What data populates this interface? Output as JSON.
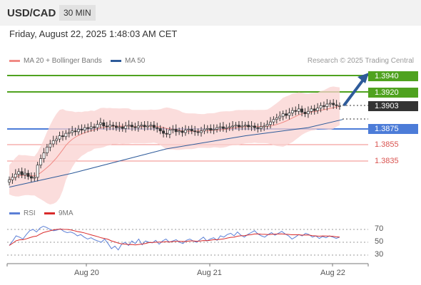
{
  "header": {
    "symbol": "USD/CAD",
    "timeframe": "30 MIN"
  },
  "datetime": "Friday, August 22, 2025 1:48:03 AM CET",
  "legend": [
    {
      "label": "MA 20 + Bollinger Bands",
      "color": "#f08a85"
    },
    {
      "label": "MA 50",
      "color": "#2e5b9a"
    }
  ],
  "credit": "Research © 2025 Trading Central",
  "levels": [
    {
      "value": "1.3940",
      "style": "green"
    },
    {
      "value": "1.3920",
      "style": "green"
    },
    {
      "value": "1.3903",
      "style": "dark"
    },
    {
      "value": "1.3875",
      "style": "blue"
    },
    {
      "value": "1.3855",
      "style": "red"
    },
    {
      "value": "1.3835",
      "style": "red"
    }
  ],
  "rsi_legend": [
    {
      "label": "RSI",
      "color": "#5b7fd6"
    },
    {
      "label": "9MA",
      "color": "#d92b2b"
    }
  ],
  "rsi_ticks": [
    "70",
    "50",
    "30"
  ],
  "x_ticks": [
    "Aug 20",
    "Aug 21",
    "Aug 22"
  ],
  "chart_data": {
    "type": "candlestick",
    "instrument": "USD/CAD",
    "ylim": [
      1.38,
      1.3946
    ],
    "current_price": 1.3903,
    "resistance_levels": [
      1.394,
      1.392
    ],
    "pivot": 1.3875,
    "support_levels": [
      1.3855,
      1.3835
    ],
    "forecast": "up",
    "closes": [
      1.3812,
      1.3815,
      1.3819,
      1.3822,
      1.3818,
      1.382,
      1.3816,
      1.3814,
      1.3815,
      1.383,
      1.3838,
      1.3845,
      1.3852,
      1.3856,
      1.386,
      1.3862,
      1.3866,
      1.3865,
      1.3869,
      1.387,
      1.3872,
      1.3871,
      1.3874,
      1.3873,
      1.3876,
      1.3875,
      1.3877,
      1.3876,
      1.388,
      1.3882,
      1.3878,
      1.3877,
      1.3879,
      1.3878,
      1.3876,
      1.3877,
      1.3875,
      1.3878,
      1.3879,
      1.3877,
      1.3876,
      1.3878,
      1.3879,
      1.3877,
      1.3878,
      1.3879,
      1.3876,
      1.3875,
      1.3872,
      1.3869,
      1.3868,
      1.3873,
      1.3874,
      1.3871,
      1.3872,
      1.387,
      1.3873,
      1.3874,
      1.3872,
      1.3871,
      1.387,
      1.3872,
      1.3874,
      1.3875,
      1.3873,
      1.3874,
      1.3876,
      1.3877,
      1.3875,
      1.3876,
      1.3877,
      1.3878,
      1.3879,
      1.3877,
      1.3878,
      1.3879,
      1.3877,
      1.3878,
      1.3876,
      1.3875,
      1.3877,
      1.3878,
      1.388,
      1.3883,
      1.3886,
      1.3888,
      1.389,
      1.3893,
      1.3891,
      1.3894,
      1.3897,
      1.3896,
      1.3899,
      1.3895,
      1.3893,
      1.3896,
      1.3899,
      1.3897,
      1.39,
      1.3903,
      1.3902,
      1.3905,
      1.3906,
      1.3904,
      1.3903,
      1.3903
    ],
    "ma50_points": [
      [
        0,
        1.3803
      ],
      [
        20,
        1.382
      ],
      [
        50,
        1.385
      ],
      [
        75,
        1.3866
      ],
      [
        95,
        1.3876
      ],
      [
        106,
        1.3886
      ]
    ],
    "rsi_ylim": [
      20,
      80
    ],
    "rsi": [
      45,
      52,
      60,
      58,
      55,
      62,
      68,
      70,
      66,
      72,
      75,
      73,
      70,
      68,
      69,
      71,
      67,
      65,
      66,
      64,
      60,
      62,
      58,
      55,
      57,
      54,
      52,
      50,
      55,
      48,
      40,
      44,
      38,
      47,
      50,
      45,
      52,
      48,
      55,
      46,
      52,
      50,
      49,
      53,
      47,
      52,
      55,
      50,
      52,
      54,
      50,
      48,
      53,
      55,
      52,
      50,
      54,
      58,
      52,
      55,
      57,
      53,
      60,
      58,
      62,
      64,
      60,
      66,
      61,
      58,
      62,
      65,
      68,
      63,
      60,
      58,
      62,
      65,
      61,
      64,
      67,
      63,
      60,
      55,
      58,
      62,
      60,
      64,
      62,
      58,
      60,
      56,
      59,
      57,
      60,
      58,
      56,
      58
    ]
  }
}
